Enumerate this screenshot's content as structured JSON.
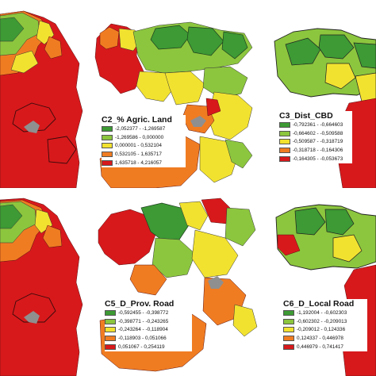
{
  "panels": [
    {
      "id": "c1",
      "title": "",
      "classes": [],
      "colors": [
        "#d7191c",
        "#f07c22",
        "#f2e230",
        "#8cc63e",
        "#3d9a34"
      ]
    },
    {
      "id": "c2",
      "title": "C2_% Agric. Land",
      "classes": [
        {
          "range": "-2,052377 - -1,269587",
          "color": "#3d9a34"
        },
        {
          "range": "-1,269586 - 0,000000",
          "color": "#8cc63e"
        },
        {
          "range": "0,000001 - 0,532104",
          "color": "#f2e230"
        },
        {
          "range": "0,532105 - 1,635717",
          "color": "#f07c22"
        },
        {
          "range": "1,635718 - 4,216057",
          "color": "#d7191c"
        }
      ]
    },
    {
      "id": "c3",
      "title": "C3_Dist_CBD",
      "classes": [
        {
          "range": "-0,792361 - -0,664603",
          "color": "#3d9a34"
        },
        {
          "range": "-0,664602 - -0,509588",
          "color": "#8cc63e"
        },
        {
          "range": "-0,509587 - -0,318719",
          "color": "#f2e230"
        },
        {
          "range": "-0,318718 - -0,164306",
          "color": "#f07c22"
        },
        {
          "range": "-0,164305 - -0,053673",
          "color": "#d7191c"
        }
      ]
    },
    {
      "id": "c4",
      "title": "",
      "classes": []
    },
    {
      "id": "c5",
      "title": "C5_D_Prov. Road",
      "classes": [
        {
          "range": "-0,592455 - -0,398772",
          "color": "#3d9a34"
        },
        {
          "range": "-0,398771 - -0,243265",
          "color": "#8cc63e"
        },
        {
          "range": "-0,243264 - -0,118904",
          "color": "#f2e230"
        },
        {
          "range": "-0,118903 - 0,051066",
          "color": "#f07c22"
        },
        {
          "range": "0,051067 - 0,254119",
          "color": "#d7191c"
        }
      ]
    },
    {
      "id": "c6",
      "title": "C6_D_Local Road",
      "classes": [
        {
          "range": "-1,192004 - -0,602303",
          "color": "#3d9a34"
        },
        {
          "range": "-0,602302 - -0,209013",
          "color": "#8cc63e"
        },
        {
          "range": "-0,209012 - 0,124336",
          "color": "#f2e230"
        },
        {
          "range": "0,124337 - 0,446978",
          "color": "#f07c22"
        },
        {
          "range": "0,446979 - 0,741417",
          "color": "#d7191c"
        }
      ]
    }
  ],
  "colors": {
    "red": "#d7191c",
    "orange": "#f07c22",
    "yellow": "#f2e230",
    "lightgreen": "#8cc63e",
    "darkgreen": "#3d9a34",
    "water": "#8f8f8f",
    "boundary": "#7a1f1f"
  }
}
